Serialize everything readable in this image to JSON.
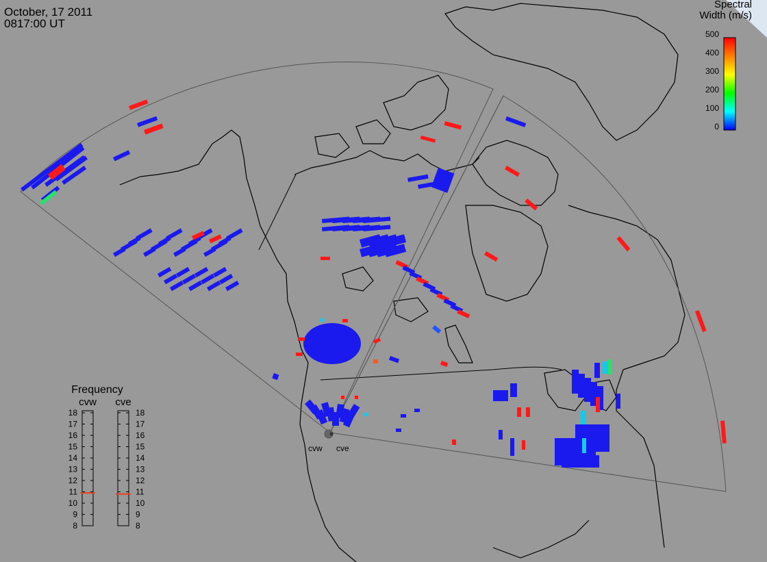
{
  "header": {
    "date": "October, 17 2011",
    "time": "0817:00 UT"
  },
  "color_legend": {
    "title_line1": "Spectral",
    "title_line2": "Width (m/s)",
    "ticks": [
      "500",
      "400",
      "300",
      "200",
      "100",
      "0"
    ],
    "colors": [
      "#ff0000",
      "#ff7f00",
      "#ffff00",
      "#00ff00",
      "#00ffff",
      "#0000ff"
    ]
  },
  "frequency_panel": {
    "title": "Frequency",
    "radars": [
      {
        "label": "cvw",
        "freq_mhz": 10.9
      },
      {
        "label": "cve",
        "freq_mhz": 10.8
      }
    ],
    "ticks": [
      "18",
      "17",
      "16",
      "15",
      "14",
      "13",
      "12",
      "11",
      "10",
      "9",
      "8"
    ],
    "marker_color": "#e8401a"
  },
  "radar_sites": [
    {
      "label": "cvw"
    },
    {
      "label": "cve"
    }
  ],
  "colors": {
    "background": "#999999",
    "coast": "#000000",
    "fov": "#555555",
    "echo_low": "#1a1aee",
    "echo_high": "#ff1a1a"
  }
}
